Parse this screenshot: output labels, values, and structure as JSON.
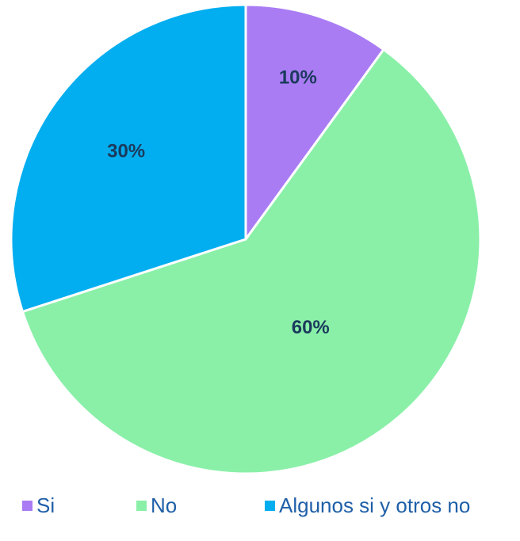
{
  "chart_data": {
    "type": "pie",
    "categories": [
      "Si",
      "No",
      "Algunos si y otros no"
    ],
    "values": [
      10,
      60,
      30
    ],
    "value_labels": [
      "10%",
      "60%",
      "30%"
    ],
    "colors": [
      "#a97cf4",
      "#8af0a8",
      "#02aeef"
    ],
    "legend": "bottom"
  }
}
